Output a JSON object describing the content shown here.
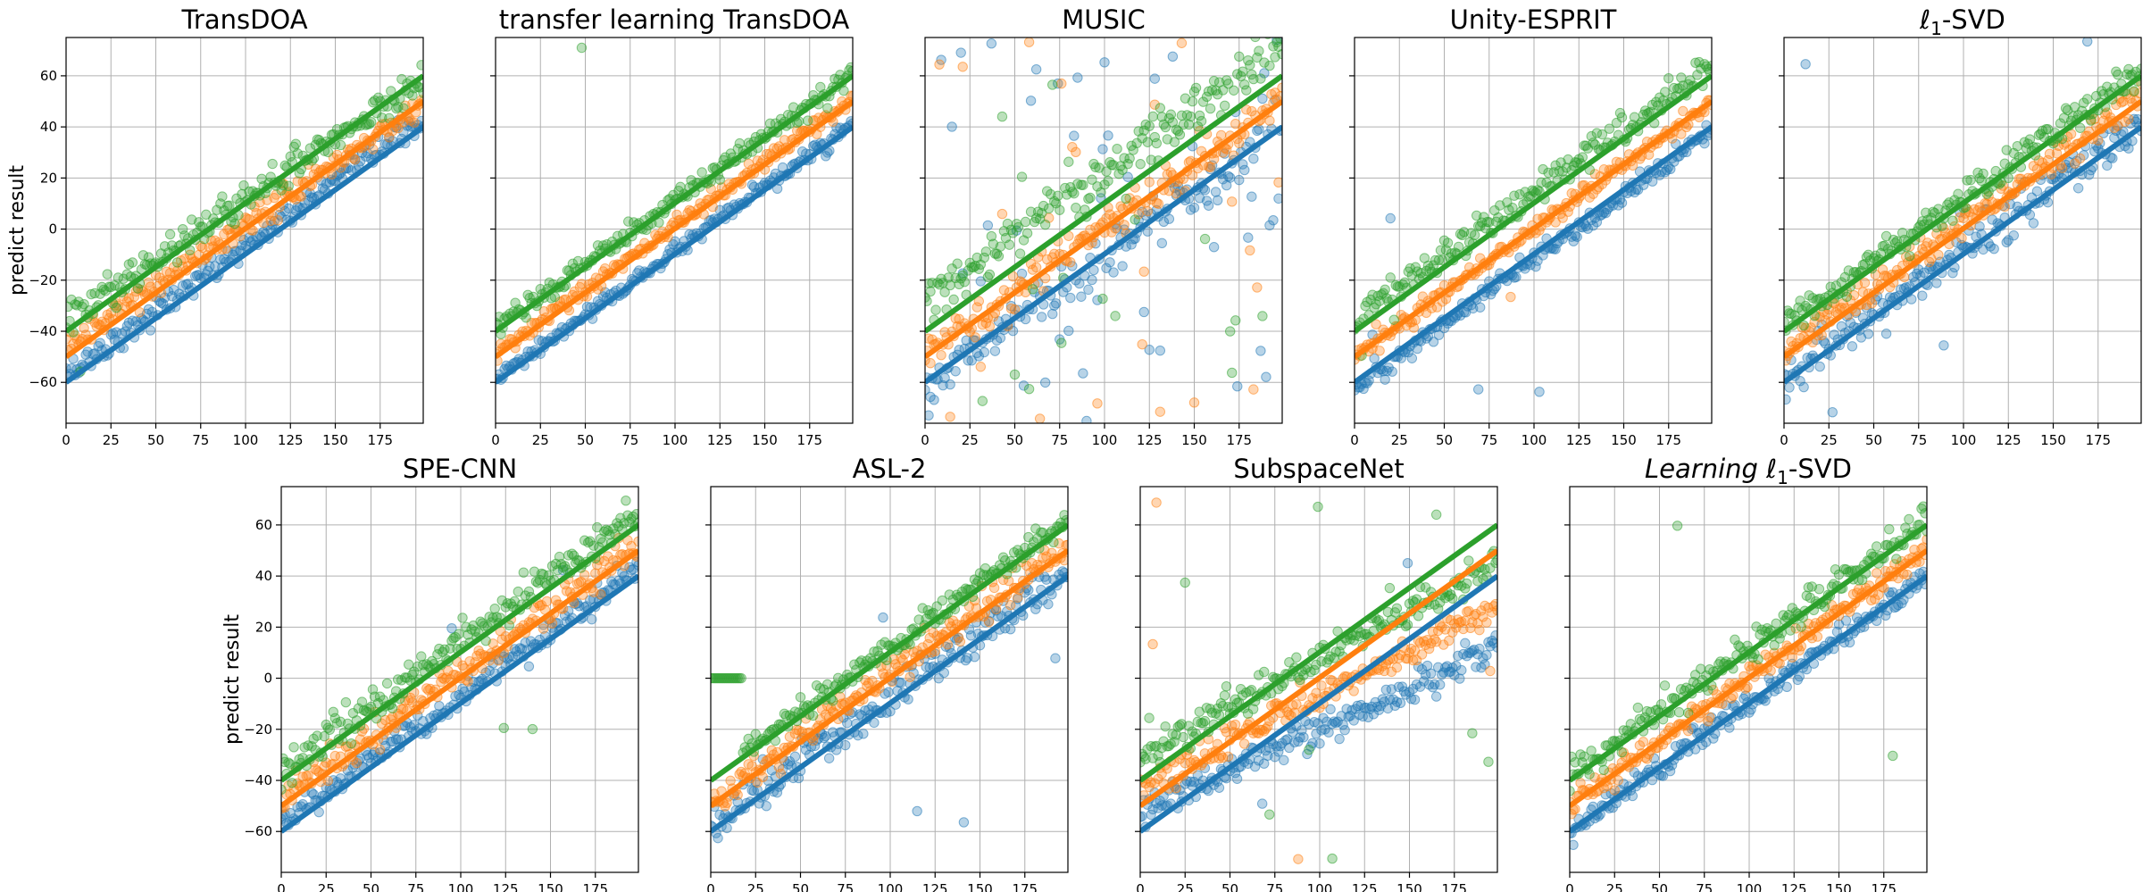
{
  "figure": {
    "rows": 2,
    "sharey": true
  },
  "colors": {
    "blue": "#1f77b4",
    "orange": "#ff7f0e",
    "green": "#2ca02c"
  },
  "chart_data": [
    {
      "type": "scatter",
      "title": "TransDOA",
      "ylabel": "predict result",
      "row": 0,
      "col": 0,
      "xlim": [
        0,
        199
      ],
      "ylim": [
        -76,
        75
      ],
      "xticks": [
        0,
        25,
        50,
        75,
        100,
        125,
        150,
        175
      ],
      "yticks": [
        -60,
        -40,
        -20,
        0,
        20,
        40,
        60
      ],
      "grid": true,
      "points_per_series": 200,
      "series": [
        {
          "color": "blue",
          "line": [
            -60,
            40
          ],
          "scatter": {
            "noise": 2.5,
            "shift": 3,
            "scale": 1.0,
            "outliers": 0
          }
        },
        {
          "color": "orange",
          "line": [
            -50,
            50
          ],
          "scatter": {
            "noise": 2.5,
            "shift": 3,
            "scale": 0.95,
            "outliers": 0
          }
        },
        {
          "color": "green",
          "line": [
            -40,
            60
          ],
          "scatter": {
            "noise": 3.5,
            "shift": 3,
            "scale": 0.95,
            "outliers": 3
          }
        }
      ]
    },
    {
      "type": "scatter",
      "title": "transfer learning TransDOA",
      "ylabel": "",
      "row": 0,
      "col": 1,
      "xlim": [
        0,
        199
      ],
      "ylim": [
        -76,
        75
      ],
      "xticks": [
        0,
        25,
        50,
        75,
        100,
        125,
        150,
        175
      ],
      "yticks": [
        -60,
        -40,
        -20,
        0,
        20,
        40,
        60
      ],
      "grid": true,
      "points_per_series": 200,
      "series": [
        {
          "color": "blue",
          "line": [
            -60,
            40
          ],
          "scatter": {
            "noise": 1.5,
            "shift": 1,
            "scale": 1.0,
            "outliers": 0
          }
        },
        {
          "color": "orange",
          "line": [
            -50,
            50
          ],
          "scatter": {
            "noise": 1.5,
            "shift": 1,
            "scale": 1.0,
            "outliers": 0
          }
        },
        {
          "color": "green",
          "line": [
            -40,
            60
          ],
          "scatter": {
            "noise": 2.0,
            "shift": 1,
            "scale": 1.0,
            "outliers": 1
          }
        }
      ]
    },
    {
      "type": "scatter",
      "title": "MUSIC",
      "ylabel": "",
      "row": 0,
      "col": 2,
      "xlim": [
        0,
        199
      ],
      "ylim": [
        -76,
        75
      ],
      "xticks": [
        0,
        25,
        50,
        75,
        100,
        125,
        150,
        175
      ],
      "yticks": [
        -60,
        -40,
        -20,
        0,
        20,
        40,
        60
      ],
      "grid": true,
      "points_per_series": 200,
      "series": [
        {
          "color": "blue",
          "line": [
            -60,
            40
          ],
          "scatter": {
            "noise": 4,
            "shift": 0,
            "scale": 1.0,
            "outliers": 60
          }
        },
        {
          "color": "orange",
          "line": [
            -50,
            50
          ],
          "scatter": {
            "noise": 4,
            "shift": 0,
            "scale": 1.0,
            "outliers": 25
          }
        },
        {
          "color": "green",
          "line": [
            -40,
            60
          ],
          "scatter": {
            "noise": 5,
            "shift": 12,
            "scale": 1.0,
            "outliers": 20
          }
        }
      ]
    },
    {
      "type": "scatter",
      "title": "Unity-ESPRIT",
      "ylabel": "",
      "row": 0,
      "col": 3,
      "xlim": [
        0,
        199
      ],
      "ylim": [
        -76,
        75
      ],
      "xticks": [
        0,
        25,
        50,
        75,
        100,
        125,
        150,
        175
      ],
      "yticks": [
        -60,
        -40,
        -20,
        0,
        20,
        40,
        60
      ],
      "grid": true,
      "points_per_series": 200,
      "series": [
        {
          "color": "blue",
          "line": [
            -60,
            40
          ],
          "scatter": {
            "noise": 2,
            "shift": -2,
            "scale": 1.0,
            "outliers": 2
          }
        },
        {
          "color": "orange",
          "line": [
            -50,
            50
          ],
          "scatter": {
            "noise": 2,
            "shift": 0,
            "scale": 1.0,
            "outliers": 1
          }
        },
        {
          "color": "green",
          "line": [
            -40,
            60
          ],
          "scatter": {
            "noise": 3,
            "shift": 4,
            "scale": 1.0,
            "outliers": 2
          }
        }
      ]
    },
    {
      "type": "scatter",
      "title": "ℓ1-SVD",
      "title_main": "ℓ",
      "title_sub": "1",
      "title_rest": "-SVD",
      "ylabel": "",
      "row": 0,
      "col": 4,
      "xlim": [
        0,
        199
      ],
      "ylim": [
        -76,
        75
      ],
      "xticks": [
        0,
        25,
        50,
        75,
        100,
        125,
        150,
        175
      ],
      "yticks": [
        -60,
        -40,
        -20,
        0,
        20,
        40,
        60
      ],
      "grid": true,
      "points_per_series": 200,
      "series": [
        {
          "color": "blue",
          "line": [
            -60,
            40
          ],
          "scatter": {
            "noise": 4,
            "shift": 2,
            "scale": 1.0,
            "outliers": 5
          }
        },
        {
          "color": "orange",
          "line": [
            -50,
            50
          ],
          "scatter": {
            "noise": 3,
            "shift": 2,
            "scale": 1.0,
            "outliers": 0
          }
        },
        {
          "color": "green",
          "line": [
            -40,
            60
          ],
          "scatter": {
            "noise": 3,
            "shift": 2,
            "scale": 1.0,
            "outliers": 1
          }
        }
      ]
    },
    {
      "type": "scatter",
      "title": "SPE-CNN",
      "ylabel": "predict result",
      "row": 1,
      "col": 0,
      "xlim": [
        0,
        199
      ],
      "ylim": [
        -76,
        75
      ],
      "xticks": [
        0,
        25,
        50,
        75,
        100,
        125,
        150,
        175
      ],
      "yticks": [
        -60,
        -40,
        -20,
        0,
        20,
        40,
        60
      ],
      "grid": true,
      "points_per_series": 200,
      "series": [
        {
          "color": "blue",
          "line": [
            -60,
            40
          ],
          "scatter": {
            "noise": 3,
            "shift": 3,
            "scale": 1.0,
            "outliers": 2
          }
        },
        {
          "color": "orange",
          "line": [
            -50,
            50
          ],
          "scatter": {
            "noise": 3,
            "shift": 2,
            "scale": 1.0,
            "outliers": 0
          }
        },
        {
          "color": "green",
          "line": [
            -40,
            60
          ],
          "scatter": {
            "noise": 3.5,
            "shift": 4,
            "scale": 1.0,
            "outliers": 3
          }
        }
      ]
    },
    {
      "type": "scatter",
      "title": "ASL-2",
      "ylabel": "",
      "row": 1,
      "col": 1,
      "xlim": [
        0,
        199
      ],
      "ylim": [
        -76,
        75
      ],
      "xticks": [
        0,
        25,
        50,
        75,
        100,
        125,
        150,
        175
      ],
      "yticks": [
        -60,
        -40,
        -20,
        0,
        20,
        40,
        60
      ],
      "grid": true,
      "points_per_series": 200,
      "series": [
        {
          "color": "blue",
          "line": [
            -60,
            40
          ],
          "scatter": {
            "noise": 4,
            "shift": 2,
            "scale": 1.0,
            "outliers": 3
          }
        },
        {
          "color": "orange",
          "line": [
            -50,
            50
          ],
          "scatter": {
            "noise": 3,
            "shift": 2,
            "scale": 1.0,
            "outliers": 0
          }
        },
        {
          "color": "green",
          "line": [
            -40,
            60
          ],
          "scatter": {
            "noise": 2.5,
            "shift": 2,
            "scale": 1.0,
            "outliers": 0,
            "flat_start": 18
          }
        }
      ]
    },
    {
      "type": "scatter",
      "title": "SubspaceNet",
      "ylabel": "",
      "row": 1,
      "col": 2,
      "xlim": [
        0,
        199
      ],
      "ylim": [
        -76,
        75
      ],
      "xticks": [
        0,
        25,
        50,
        75,
        100,
        125,
        150,
        175
      ],
      "yticks": [
        -60,
        -40,
        -20,
        0,
        20,
        40,
        60
      ],
      "grid": true,
      "points_per_series": 200,
      "series": [
        {
          "color": "blue",
          "line": [
            -60,
            40
          ],
          "scatter": {
            "noise": 3,
            "shift": 0,
            "scale": 0.65,
            "outliers": 2
          }
        },
        {
          "color": "orange",
          "line": [
            -50,
            50
          ],
          "scatter": {
            "noise": 3,
            "shift": 2,
            "scale": 0.7,
            "outliers": 2
          }
        },
        {
          "color": "green",
          "line": [
            -40,
            60
          ],
          "scatter": {
            "noise": 3,
            "shift": 5,
            "scale": 0.75,
            "outliers": 12
          }
        }
      ]
    },
    {
      "type": "scatter",
      "title": "Learning ℓ1-SVD",
      "title_main": "Learning ℓ",
      "title_sub": "1",
      "title_rest": "-SVD",
      "ylabel": "",
      "row": 1,
      "col": 3,
      "xlim": [
        0,
        199
      ],
      "ylim": [
        -76,
        75
      ],
      "xticks": [
        0,
        25,
        50,
        75,
        100,
        125,
        150,
        175
      ],
      "yticks": [
        -60,
        -40,
        -20,
        0,
        20,
        40,
        60
      ],
      "grid": true,
      "points_per_series": 200,
      "series": [
        {
          "color": "blue",
          "line": [
            -60,
            40
          ],
          "scatter": {
            "noise": 2.5,
            "shift": 0,
            "scale": 1.0,
            "outliers": 0
          }
        },
        {
          "color": "orange",
          "line": [
            -50,
            50
          ],
          "scatter": {
            "noise": 2.5,
            "shift": 0,
            "scale": 1.0,
            "outliers": 0
          }
        },
        {
          "color": "green",
          "line": [
            -40,
            60
          ],
          "scatter": {
            "noise": 3,
            "shift": 2,
            "scale": 1.0,
            "outliers": 1
          }
        }
      ]
    }
  ]
}
